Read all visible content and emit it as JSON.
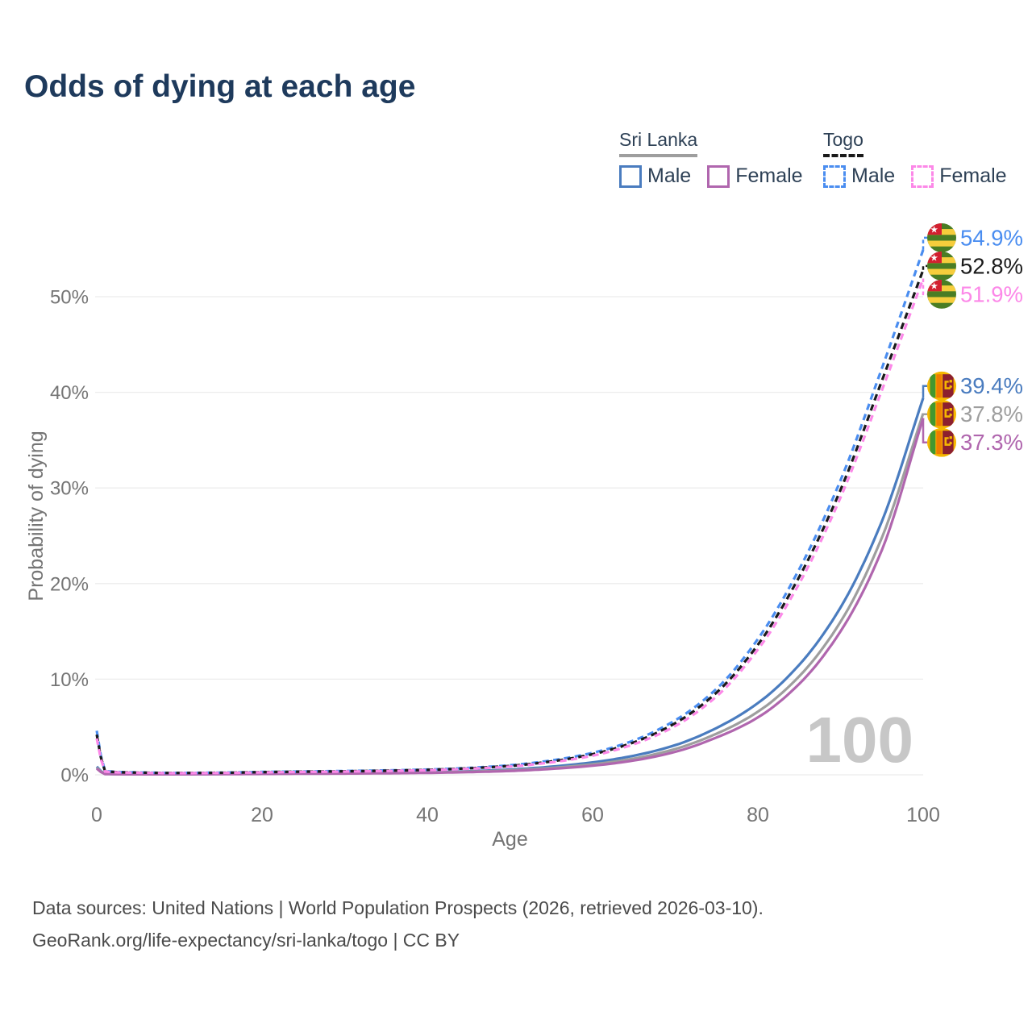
{
  "title": "Odds of dying at each age",
  "legend": {
    "groups": [
      {
        "name": "Sri Lanka",
        "underline_style": "solid",
        "underline_color": "#9e9e9e",
        "items": [
          {
            "label": "Male",
            "color": "#4a7cbf",
            "dashed": false
          },
          {
            "label": "Female",
            "color": "#b066ae",
            "dashed": false
          }
        ]
      },
      {
        "name": "Togo",
        "underline_style": "dashed",
        "underline_color": "#1a1a1a",
        "items": [
          {
            "label": "Male",
            "color": "#4a8df0",
            "dashed": true
          },
          {
            "label": "Female",
            "color": "#fc88e8",
            "dashed": true
          }
        ]
      }
    ]
  },
  "chart_data": {
    "type": "line",
    "title": "Odds of dying at each age",
    "xlabel": "Age",
    "ylabel": "Probability of dying",
    "xlim": [
      0,
      100
    ],
    "ylim_percent": [
      0,
      57
    ],
    "x_ticks": [
      0,
      20,
      40,
      60,
      80,
      100
    ],
    "y_ticks": [
      {
        "value": 0,
        "label": "0%"
      },
      {
        "value": 10,
        "label": "10%"
      },
      {
        "value": 20,
        "label": "20%"
      },
      {
        "value": 30,
        "label": "30%"
      },
      {
        "value": 40,
        "label": "40%"
      },
      {
        "value": 50,
        "label": "50%"
      }
    ],
    "grid": "horizontal",
    "legend_position": "top-right",
    "age_indicator_watermark": "100",
    "series": [
      {
        "name": "Sri Lanka Male",
        "country": "Sri Lanka",
        "sex": "male",
        "color": "#4a7cbf",
        "dashed": false,
        "flag": "sri-lanka",
        "end_label": "39.4%",
        "end_value_percent": 39.4,
        "points_age_percent": [
          [
            0,
            0.85
          ],
          [
            1,
            0.1
          ],
          [
            5,
            0.06
          ],
          [
            10,
            0.06
          ],
          [
            15,
            0.09
          ],
          [
            20,
            0.13
          ],
          [
            25,
            0.16
          ],
          [
            30,
            0.18
          ],
          [
            35,
            0.21
          ],
          [
            40,
            0.26
          ],
          [
            45,
            0.38
          ],
          [
            50,
            0.55
          ],
          [
            55,
            0.85
          ],
          [
            60,
            1.3
          ],
          [
            65,
            2.0
          ],
          [
            70,
            3.1
          ],
          [
            75,
            4.9
          ],
          [
            80,
            7.5
          ],
          [
            85,
            11.5
          ],
          [
            90,
            17.5
          ],
          [
            95,
            26.5
          ],
          [
            100,
            39.4
          ]
        ]
      },
      {
        "name": "Sri Lanka Both sexes",
        "country": "Sri Lanka",
        "sex": "both",
        "color": "#9e9e9e",
        "dashed": false,
        "flag": "sri-lanka",
        "end_label": "37.8%",
        "end_value_percent": 37.8,
        "points_age_percent": [
          [
            0,
            0.75
          ],
          [
            1,
            0.09
          ],
          [
            5,
            0.055
          ],
          [
            10,
            0.055
          ],
          [
            15,
            0.08
          ],
          [
            20,
            0.11
          ],
          [
            25,
            0.14
          ],
          [
            30,
            0.16
          ],
          [
            35,
            0.19
          ],
          [
            40,
            0.23
          ],
          [
            45,
            0.33
          ],
          [
            50,
            0.47
          ],
          [
            55,
            0.72
          ],
          [
            60,
            1.1
          ],
          [
            65,
            1.7
          ],
          [
            70,
            2.7
          ],
          [
            75,
            4.3
          ],
          [
            80,
            6.6
          ],
          [
            85,
            10.3
          ],
          [
            90,
            16.0
          ],
          [
            95,
            24.8
          ],
          [
            100,
            37.8
          ]
        ]
      },
      {
        "name": "Sri Lanka Female",
        "country": "Sri Lanka",
        "sex": "female",
        "color": "#b066ae",
        "dashed": false,
        "flag": "sri-lanka",
        "end_label": "37.3%",
        "end_value_percent": 37.3,
        "points_age_percent": [
          [
            0,
            0.65
          ],
          [
            1,
            0.08
          ],
          [
            5,
            0.05
          ],
          [
            10,
            0.05
          ],
          [
            15,
            0.07
          ],
          [
            20,
            0.09
          ],
          [
            25,
            0.11
          ],
          [
            30,
            0.13
          ],
          [
            35,
            0.16
          ],
          [
            40,
            0.2
          ],
          [
            45,
            0.28
          ],
          [
            50,
            0.4
          ],
          [
            55,
            0.62
          ],
          [
            60,
            0.95
          ],
          [
            65,
            1.5
          ],
          [
            70,
            2.4
          ],
          [
            75,
            3.9
          ],
          [
            80,
            6.0
          ],
          [
            85,
            9.5
          ],
          [
            90,
            15.0
          ],
          [
            95,
            23.5
          ],
          [
            100,
            37.3
          ]
        ]
      },
      {
        "name": "Togo Male",
        "country": "Togo",
        "sex": "male",
        "color": "#4a8df0",
        "dashed": true,
        "flag": "togo",
        "end_label": "54.9%",
        "end_value_percent": 54.9,
        "points_age_percent": [
          [
            0,
            4.6
          ],
          [
            1,
            0.4
          ],
          [
            5,
            0.25
          ],
          [
            10,
            0.2
          ],
          [
            15,
            0.23
          ],
          [
            20,
            0.3
          ],
          [
            25,
            0.35
          ],
          [
            30,
            0.4
          ],
          [
            35,
            0.46
          ],
          [
            40,
            0.55
          ],
          [
            45,
            0.72
          ],
          [
            50,
            1.0
          ],
          [
            55,
            1.5
          ],
          [
            60,
            2.3
          ],
          [
            65,
            3.6
          ],
          [
            70,
            5.7
          ],
          [
            75,
            9.0
          ],
          [
            80,
            14.2
          ],
          [
            85,
            21.5
          ],
          [
            90,
            30.8
          ],
          [
            95,
            42.5
          ],
          [
            100,
            54.9
          ]
        ]
      },
      {
        "name": "Togo Both sexes",
        "country": "Togo",
        "sex": "both",
        "color": "#1a1a1a",
        "dashed": true,
        "flag": "togo",
        "end_label": "52.8%",
        "end_value_percent": 52.8,
        "points_age_percent": [
          [
            0,
            4.2
          ],
          [
            1,
            0.37
          ],
          [
            5,
            0.23
          ],
          [
            10,
            0.19
          ],
          [
            15,
            0.21
          ],
          [
            20,
            0.28
          ],
          [
            25,
            0.33
          ],
          [
            30,
            0.37
          ],
          [
            35,
            0.43
          ],
          [
            40,
            0.52
          ],
          [
            45,
            0.68
          ],
          [
            50,
            0.93
          ],
          [
            55,
            1.4
          ],
          [
            60,
            2.15
          ],
          [
            65,
            3.4
          ],
          [
            70,
            5.4
          ],
          [
            75,
            8.6
          ],
          [
            80,
            13.6
          ],
          [
            85,
            20.7
          ],
          [
            90,
            29.8
          ],
          [
            95,
            41.2
          ],
          [
            100,
            52.8
          ]
        ]
      },
      {
        "name": "Togo Female",
        "country": "Togo",
        "sex": "female",
        "color": "#fc88e8",
        "dashed": true,
        "flag": "togo",
        "end_label": "51.9%",
        "end_value_percent": 51.9,
        "points_age_percent": [
          [
            0,
            3.8
          ],
          [
            1,
            0.34
          ],
          [
            5,
            0.21
          ],
          [
            10,
            0.17
          ],
          [
            15,
            0.19
          ],
          [
            20,
            0.25
          ],
          [
            25,
            0.3
          ],
          [
            30,
            0.34
          ],
          [
            35,
            0.4
          ],
          [
            40,
            0.48
          ],
          [
            45,
            0.63
          ],
          [
            50,
            0.86
          ],
          [
            55,
            1.3
          ],
          [
            60,
            2.0
          ],
          [
            65,
            3.2
          ],
          [
            70,
            5.1
          ],
          [
            75,
            8.2
          ],
          [
            80,
            13.1
          ],
          [
            85,
            20.0
          ],
          [
            90,
            29.0
          ],
          [
            95,
            40.2
          ],
          [
            100,
            51.9
          ]
        ]
      }
    ]
  },
  "footer": {
    "line1": "Data sources: United Nations | World Population Prospects (2026, retrieved 2026-03-10).",
    "line2": "GeoRank.org/life-expectancy/sri-lanka/togo | CC BY"
  }
}
